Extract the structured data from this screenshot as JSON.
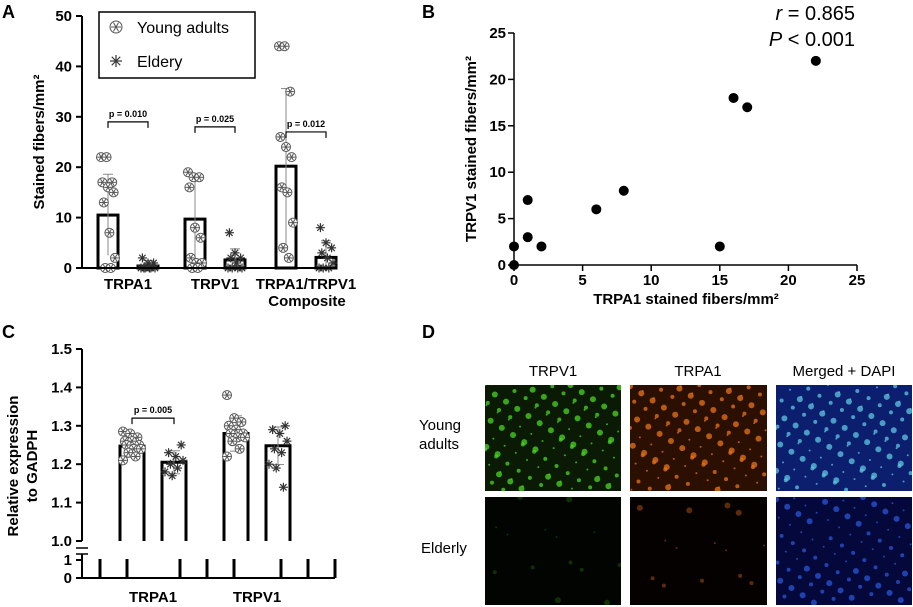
{
  "panels": {
    "A": "A",
    "B": "B",
    "C": "C",
    "D": "D"
  },
  "chart_data": [
    {
      "panel": "A",
      "type": "bar",
      "ylabel": "Stained fibers/mm²",
      "ylim": [
        0,
        50
      ],
      "yticks": [
        0,
        10,
        20,
        30,
        40,
        50
      ],
      "categories": [
        "TRPA1",
        "TRPV1",
        "TRPA1/TRPV1"
      ],
      "category_sublabels": [
        "",
        "",
        "Composite"
      ],
      "legend_position": "top-left",
      "series": [
        {
          "name": "Young adults",
          "marker": "circle-star",
          "values": [
            10.5,
            9.7,
            20.2
          ],
          "error_upper": [
            18.6,
            17.5,
            35.6
          ],
          "error_lower": [
            2.5,
            2.0,
            4.8
          ],
          "points": [
            [
              22,
              22,
              17,
              17,
              16,
              15,
              13,
              7,
              2,
              0,
              0
            ],
            [
              19,
              18,
              18,
              16,
              8,
              6,
              2,
              1,
              1,
              0,
              0
            ],
            [
              44,
              44,
              35,
              26,
              24,
              22,
              16,
              15,
              9,
              4,
              2
            ]
          ]
        },
        {
          "name": "Eldery",
          "marker": "asterisk",
          "values": [
            0.4,
            1.6,
            2.1
          ],
          "error_upper": [
            1.5,
            3.8,
            5.4
          ],
          "error_lower": [
            0,
            0,
            0
          ],
          "points": [
            [
              2,
              1,
              1,
              0,
              0,
              0,
              0,
              0,
              0
            ],
            [
              7,
              3,
              2,
              2,
              1,
              0,
              0,
              0,
              0
            ],
            [
              8,
              5,
              4,
              3,
              2,
              1,
              0,
              0,
              0
            ]
          ]
        }
      ],
      "annotations": [
        {
          "label": "p = 0.010",
          "group": 0,
          "y": 29
        },
        {
          "label": "p = 0.025",
          "group": 1,
          "y": 28
        },
        {
          "label": "p = 0.012",
          "group": 2,
          "y": 27
        }
      ]
    },
    {
      "panel": "B",
      "type": "scatter",
      "xlabel": "TRPA1 stained fibers/mm²",
      "ylabel": "TRPV1 stained fibers/mm²",
      "xlim": [
        0,
        25
      ],
      "ylim": [
        0,
        25
      ],
      "xticks": [
        0,
        5,
        10,
        15,
        20,
        25
      ],
      "yticks": [
        0,
        5,
        10,
        15,
        20,
        25
      ],
      "stat_r_var": "r",
      "stat_r_value": " = 0.865",
      "stat_p_var": "P",
      "stat_p_value": " < 0.001",
      "x": [
        0,
        0,
        1,
        1,
        2,
        6,
        8,
        15,
        16,
        17,
        22
      ],
      "y": [
        0,
        2,
        3,
        7,
        2,
        6,
        8,
        2,
        18,
        17,
        22
      ]
    },
    {
      "panel": "C",
      "type": "bar",
      "ylabel_line1": "Relative expression",
      "ylabel_line2": "to GADPH",
      "ylim_upper": [
        1.0,
        1.5
      ],
      "yticks_upper": [
        "1.0",
        "1.1",
        "1.2",
        "1.3",
        "1.4",
        "1.5"
      ],
      "ylim_lower": [
        0,
        1
      ],
      "yticks_lower": [
        "0",
        "1"
      ],
      "categories": [
        "TRPA1",
        "TRPV1"
      ],
      "series": [
        {
          "name": "Young adults",
          "marker": "circle-star",
          "values": [
            1.247,
            1.28
          ],
          "error_upper": [
            1.276,
            1.326
          ],
          "error_lower": [
            1.218,
            1.234
          ],
          "points": [
            [
              1.285,
              1.28,
              1.27,
              1.26,
              1.26,
              1.25,
              1.25,
              1.24,
              1.24,
              1.23,
              1.22,
              1.21
            ],
            [
              1.38,
              1.32,
              1.31,
              1.3,
              1.29,
              1.28,
              1.28,
              1.27,
              1.27,
              1.26,
              1.24,
              1.22
            ]
          ]
        },
        {
          "name": "Eldery",
          "marker": "asterisk",
          "values": [
            1.205,
            1.248
          ],
          "error_upper": [
            1.235,
            1.297
          ],
          "error_lower": [
            1.175,
            1.199
          ],
          "points": [
            [
              1.25,
              1.23,
              1.22,
              1.21,
              1.2,
              1.19,
              1.18,
              1.17
            ],
            [
              1.3,
              1.29,
              1.28,
              1.26,
              1.24,
              1.23,
              1.2,
              1.19,
              1.14
            ]
          ]
        }
      ],
      "annotations": [
        {
          "label": "p = 0.005",
          "group": 0,
          "y": 1.32
        }
      ]
    }
  ],
  "micrographs": {
    "columns": [
      "TRPV1",
      "TRPA1",
      "Merged + DAPI"
    ],
    "row_labels": [
      [
        "Young",
        "adults"
      ],
      [
        "Elderly"
      ]
    ],
    "tiles": [
      {
        "row": 0,
        "col": 0,
        "base": "#0a1a04",
        "dots": "#49d623",
        "density": 0.8
      },
      {
        "row": 0,
        "col": 1,
        "base": "#2b1002",
        "dots": "#e8731a",
        "density": 0.8
      },
      {
        "row": 0,
        "col": 2,
        "base": "#0b1f6e",
        "dots": "#5fc7e0",
        "density": 0.8
      },
      {
        "row": 1,
        "col": 0,
        "base": "#010400",
        "dots": "#163d08",
        "density": 0.1
      },
      {
        "row": 1,
        "col": 1,
        "base": "#050100",
        "dots": "#7a3b0c",
        "density": 0.1
      },
      {
        "row": 1,
        "col": 2,
        "base": "#04083a",
        "dots": "#2a55d8",
        "density": 0.6
      }
    ]
  }
}
